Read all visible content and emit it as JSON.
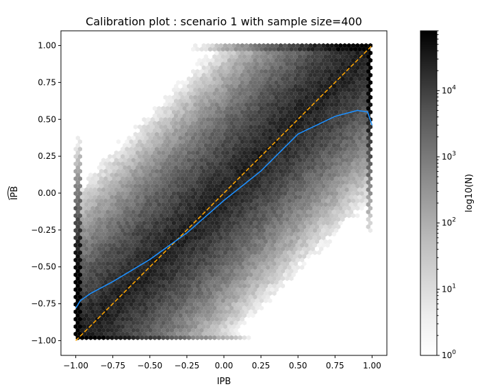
{
  "chart_data": {
    "type": "hexbin",
    "title": "Calibration plot : scenario 1 with sample size=400",
    "xlabel": "IPB",
    "ylabel": "IPB",
    "ylabel_hat": true,
    "xlim": [
      -1.1,
      1.1
    ],
    "ylim": [
      -1.1,
      1.1
    ],
    "xticks": [
      -1.0,
      -0.75,
      -0.5,
      -0.25,
      0.0,
      0.25,
      0.5,
      0.75,
      1.0
    ],
    "xtick_labels": [
      "−1.00",
      "−0.75",
      "−0.50",
      "−0.25",
      "0.00",
      "0.25",
      "0.50",
      "0.75",
      "1.00"
    ],
    "yticks": [
      -1.0,
      -0.75,
      -0.5,
      -0.25,
      0.0,
      0.25,
      0.5,
      0.75,
      1.0
    ],
    "ytick_labels": [
      "−1.00",
      "−0.75",
      "−0.50",
      "−0.25",
      "0.00",
      "0.25",
      "0.50",
      "0.75",
      "1.00"
    ],
    "grid": false,
    "colormap": "Greys",
    "colorbar": {
      "label": "log10(N)",
      "scale": "log",
      "range": [
        1,
        80000
      ],
      "ticks": [
        {
          "value": 1,
          "base": "10",
          "exp": "0"
        },
        {
          "value": 10,
          "base": "10",
          "exp": "1"
        },
        {
          "value": 100,
          "base": "10",
          "exp": "2"
        },
        {
          "value": 1000,
          "base": "10",
          "exp": "3"
        },
        {
          "value": 10000,
          "base": "10",
          "exp": "4"
        }
      ]
    },
    "series": [
      {
        "type": "line",
        "style": "dashed",
        "color": "#ffa500",
        "x": [
          -1.0,
          1.0
        ],
        "y": [
          -1.0,
          1.0
        ]
      },
      {
        "type": "line",
        "style": "solid",
        "color": "#1e90ff",
        "x": [
          -1.0,
          -0.97,
          -0.9,
          -0.75,
          -0.5,
          -0.25,
          0.0,
          0.25,
          0.5,
          0.75,
          0.9,
          0.97,
          1.0
        ],
        "y": [
          -0.78,
          -0.73,
          -0.68,
          -0.6,
          -0.45,
          -0.27,
          -0.05,
          0.15,
          0.4,
          0.52,
          0.56,
          0.55,
          0.46
        ]
      }
    ]
  }
}
